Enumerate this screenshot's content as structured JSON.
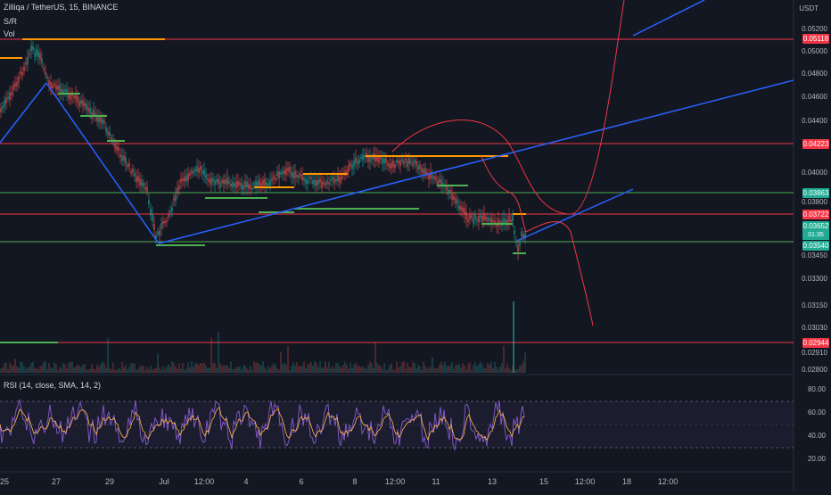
{
  "header": {
    "symbol_title": "Zilliqa / TetherUS, 15, BINANCE",
    "indicator_sr": "S/R",
    "indicator_vol": "Vol"
  },
  "price_axis": {
    "currency": "USDT",
    "labels": [
      "0.05200",
      "0.05000",
      "0.04800",
      "0.04600",
      "0.04400",
      "0.04000",
      "0.03800",
      "0.03450",
      "0.03300",
      "0.03150",
      "0.03030",
      "0.02910",
      "0.02800"
    ]
  },
  "price_tags": [
    {
      "id": "r1",
      "text": "0.05118",
      "color": "#f23645"
    },
    {
      "id": "r2",
      "text": "0.04223",
      "color": "#f23645"
    },
    {
      "id": "s1",
      "text": "0.03863",
      "color": "#22ab94"
    },
    {
      "id": "r3",
      "text": "0.03722",
      "color": "#f23645"
    },
    {
      "id": "cur",
      "text": "0.03652",
      "sub": "01:35",
      "color": "#22ab94"
    },
    {
      "id": "s2",
      "text": "0.03540",
      "color": "#22ab94"
    },
    {
      "id": "r4",
      "text": "0.02944",
      "color": "#f23645"
    }
  ],
  "rsi": {
    "title": "RSI (14, close, SMA, 14, 2)",
    "levels": [
      "80.00",
      "60.00",
      "40.00",
      "20.00"
    ]
  },
  "time_axis": {
    "labels": [
      "25",
      "27",
      "29",
      "Jul",
      "12:00",
      "4",
      "6",
      "8",
      "12:00",
      "11",
      "13",
      "15",
      "12:00",
      "18",
      "12:00"
    ]
  },
  "colors": {
    "background": "#131722",
    "resistance": "#f23645",
    "support": "#4caf50",
    "resistance_step": "#ff9800",
    "trendline": "#2962ff",
    "projection": "#f23645",
    "rsi_line": "#7e57c2",
    "rsi_signal": "#ffb74d"
  }
}
